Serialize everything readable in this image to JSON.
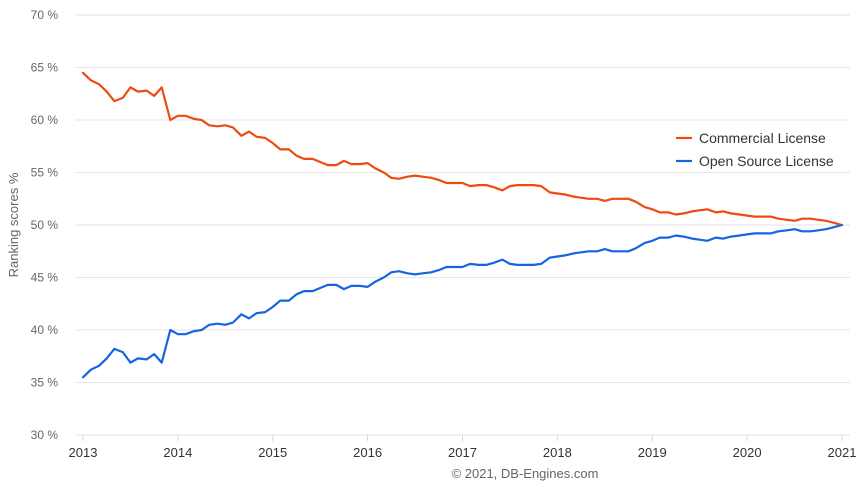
{
  "chart_data": {
    "type": "line",
    "ylabel": "Ranking scores %",
    "xlabel": "",
    "ylim": [
      30,
      70
    ],
    "yticks": [
      30,
      35,
      40,
      45,
      50,
      55,
      60,
      65,
      70
    ],
    "ytick_labels": [
      "30 %",
      "35 %",
      "40 %",
      "45 %",
      "50 %",
      "55 %",
      "60 %",
      "65 %",
      "70 %"
    ],
    "xlim": [
      2013,
      2021
    ],
    "xticks": [
      2013,
      2014,
      2015,
      2016,
      2017,
      2018,
      2019,
      2020,
      2021
    ],
    "xtick_labels": [
      "2013",
      "2014",
      "2015",
      "2016",
      "2017",
      "2018",
      "2019",
      "2020",
      "2021"
    ],
    "grid": true,
    "legend_position": "right",
    "credits": "© 2021, DB-Engines.com",
    "series": [
      {
        "name": "Commercial License",
        "color": "#ee4a12",
        "points": [
          [
            2013.0,
            64.5
          ],
          [
            2013.08,
            63.8
          ],
          [
            2013.17,
            63.4
          ],
          [
            2013.25,
            62.7
          ],
          [
            2013.33,
            61.8
          ],
          [
            2013.42,
            62.1
          ],
          [
            2013.5,
            63.1
          ],
          [
            2013.58,
            62.7
          ],
          [
            2013.67,
            62.8
          ],
          [
            2013.75,
            62.3
          ],
          [
            2013.83,
            63.1
          ],
          [
            2013.92,
            60.0
          ],
          [
            2014.0,
            60.4
          ],
          [
            2014.08,
            60.4
          ],
          [
            2014.17,
            60.1
          ],
          [
            2014.25,
            60.0
          ],
          [
            2014.33,
            59.5
          ],
          [
            2014.42,
            59.4
          ],
          [
            2014.5,
            59.5
          ],
          [
            2014.58,
            59.3
          ],
          [
            2014.67,
            58.5
          ],
          [
            2014.75,
            58.9
          ],
          [
            2014.83,
            58.4
          ],
          [
            2014.92,
            58.3
          ],
          [
            2015.0,
            57.8
          ],
          [
            2015.08,
            57.2
          ],
          [
            2015.17,
            57.2
          ],
          [
            2015.25,
            56.6
          ],
          [
            2015.33,
            56.3
          ],
          [
            2015.42,
            56.3
          ],
          [
            2015.5,
            56.0
          ],
          [
            2015.58,
            55.7
          ],
          [
            2015.67,
            55.7
          ],
          [
            2015.75,
            56.1
          ],
          [
            2015.83,
            55.8
          ],
          [
            2015.92,
            55.8
          ],
          [
            2016.0,
            55.9
          ],
          [
            2016.08,
            55.4
          ],
          [
            2016.17,
            55.0
          ],
          [
            2016.25,
            54.5
          ],
          [
            2016.33,
            54.4
          ],
          [
            2016.42,
            54.6
          ],
          [
            2016.5,
            54.7
          ],
          [
            2016.58,
            54.6
          ],
          [
            2016.67,
            54.5
          ],
          [
            2016.75,
            54.3
          ],
          [
            2016.83,
            54.0
          ],
          [
            2016.92,
            54.0
          ],
          [
            2017.0,
            54.0
          ],
          [
            2017.08,
            53.7
          ],
          [
            2017.17,
            53.8
          ],
          [
            2017.25,
            53.8
          ],
          [
            2017.33,
            53.6
          ],
          [
            2017.42,
            53.3
          ],
          [
            2017.5,
            53.7
          ],
          [
            2017.58,
            53.8
          ],
          [
            2017.67,
            53.8
          ],
          [
            2017.75,
            53.8
          ],
          [
            2017.83,
            53.7
          ],
          [
            2017.92,
            53.1
          ],
          [
            2018.0,
            53.0
          ],
          [
            2018.08,
            52.9
          ],
          [
            2018.17,
            52.7
          ],
          [
            2018.25,
            52.6
          ],
          [
            2018.33,
            52.5
          ],
          [
            2018.42,
            52.5
          ],
          [
            2018.5,
            52.3
          ],
          [
            2018.58,
            52.5
          ],
          [
            2018.67,
            52.5
          ],
          [
            2018.75,
            52.5
          ],
          [
            2018.83,
            52.2
          ],
          [
            2018.92,
            51.7
          ],
          [
            2019.0,
            51.5
          ],
          [
            2019.08,
            51.2
          ],
          [
            2019.17,
            51.2
          ],
          [
            2019.25,
            51.0
          ],
          [
            2019.33,
            51.1
          ],
          [
            2019.42,
            51.3
          ],
          [
            2019.5,
            51.4
          ],
          [
            2019.58,
            51.5
          ],
          [
            2019.67,
            51.2
          ],
          [
            2019.75,
            51.3
          ],
          [
            2019.83,
            51.1
          ],
          [
            2019.92,
            51.0
          ],
          [
            2020.0,
            50.9
          ],
          [
            2020.08,
            50.8
          ],
          [
            2020.17,
            50.8
          ],
          [
            2020.25,
            50.8
          ],
          [
            2020.33,
            50.6
          ],
          [
            2020.42,
            50.5
          ],
          [
            2020.5,
            50.4
          ],
          [
            2020.58,
            50.6
          ],
          [
            2020.67,
            50.6
          ],
          [
            2020.75,
            50.5
          ],
          [
            2020.83,
            50.4
          ],
          [
            2020.92,
            50.2
          ],
          [
            2021.0,
            50.0
          ]
        ]
      },
      {
        "name": "Open Source License",
        "color": "#1564e0",
        "points": [
          [
            2013.0,
            35.5
          ],
          [
            2013.08,
            36.2
          ],
          [
            2013.17,
            36.6
          ],
          [
            2013.25,
            37.3
          ],
          [
            2013.33,
            38.2
          ],
          [
            2013.42,
            37.9
          ],
          [
            2013.5,
            36.9
          ],
          [
            2013.58,
            37.3
          ],
          [
            2013.67,
            37.2
          ],
          [
            2013.75,
            37.7
          ],
          [
            2013.83,
            36.9
          ],
          [
            2013.92,
            40.0
          ],
          [
            2014.0,
            39.6
          ],
          [
            2014.08,
            39.6
          ],
          [
            2014.17,
            39.9
          ],
          [
            2014.25,
            40.0
          ],
          [
            2014.33,
            40.5
          ],
          [
            2014.42,
            40.6
          ],
          [
            2014.5,
            40.5
          ],
          [
            2014.58,
            40.7
          ],
          [
            2014.67,
            41.5
          ],
          [
            2014.75,
            41.1
          ],
          [
            2014.83,
            41.6
          ],
          [
            2014.92,
            41.7
          ],
          [
            2015.0,
            42.2
          ],
          [
            2015.08,
            42.8
          ],
          [
            2015.17,
            42.8
          ],
          [
            2015.25,
            43.4
          ],
          [
            2015.33,
            43.7
          ],
          [
            2015.42,
            43.7
          ],
          [
            2015.5,
            44.0
          ],
          [
            2015.58,
            44.3
          ],
          [
            2015.67,
            44.3
          ],
          [
            2015.75,
            43.9
          ],
          [
            2015.83,
            44.2
          ],
          [
            2015.92,
            44.2
          ],
          [
            2016.0,
            44.1
          ],
          [
            2016.08,
            44.6
          ],
          [
            2016.17,
            45.0
          ],
          [
            2016.25,
            45.5
          ],
          [
            2016.33,
            45.6
          ],
          [
            2016.42,
            45.4
          ],
          [
            2016.5,
            45.3
          ],
          [
            2016.58,
            45.4
          ],
          [
            2016.67,
            45.5
          ],
          [
            2016.75,
            45.7
          ],
          [
            2016.83,
            46.0
          ],
          [
            2016.92,
            46.0
          ],
          [
            2017.0,
            46.0
          ],
          [
            2017.08,
            46.3
          ],
          [
            2017.17,
            46.2
          ],
          [
            2017.25,
            46.2
          ],
          [
            2017.33,
            46.4
          ],
          [
            2017.42,
            46.7
          ],
          [
            2017.5,
            46.3
          ],
          [
            2017.58,
            46.2
          ],
          [
            2017.67,
            46.2
          ],
          [
            2017.75,
            46.2
          ],
          [
            2017.83,
            46.3
          ],
          [
            2017.92,
            46.9
          ],
          [
            2018.0,
            47.0
          ],
          [
            2018.08,
            47.1
          ],
          [
            2018.17,
            47.3
          ],
          [
            2018.25,
            47.4
          ],
          [
            2018.33,
            47.5
          ],
          [
            2018.42,
            47.5
          ],
          [
            2018.5,
            47.7
          ],
          [
            2018.58,
            47.5
          ],
          [
            2018.67,
            47.5
          ],
          [
            2018.75,
            47.5
          ],
          [
            2018.83,
            47.8
          ],
          [
            2018.92,
            48.3
          ],
          [
            2019.0,
            48.5
          ],
          [
            2019.08,
            48.8
          ],
          [
            2019.17,
            48.8
          ],
          [
            2019.25,
            49.0
          ],
          [
            2019.33,
            48.9
          ],
          [
            2019.42,
            48.7
          ],
          [
            2019.5,
            48.6
          ],
          [
            2019.58,
            48.5
          ],
          [
            2019.67,
            48.8
          ],
          [
            2019.75,
            48.7
          ],
          [
            2019.83,
            48.9
          ],
          [
            2019.92,
            49.0
          ],
          [
            2020.0,
            49.1
          ],
          [
            2020.08,
            49.2
          ],
          [
            2020.17,
            49.2
          ],
          [
            2020.25,
            49.2
          ],
          [
            2020.33,
            49.4
          ],
          [
            2020.42,
            49.5
          ],
          [
            2020.5,
            49.6
          ],
          [
            2020.58,
            49.4
          ],
          [
            2020.67,
            49.4
          ],
          [
            2020.75,
            49.5
          ],
          [
            2020.83,
            49.6
          ],
          [
            2020.92,
            49.8
          ],
          [
            2021.0,
            50.0
          ]
        ]
      }
    ]
  }
}
